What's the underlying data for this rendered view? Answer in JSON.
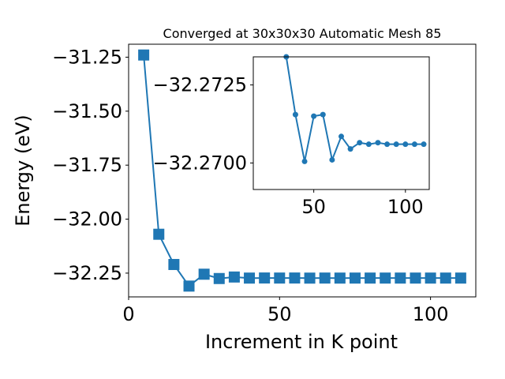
{
  "chart_data": [
    {
      "type": "line",
      "title": "Converged at 30x30x30 Automatic Mesh 85",
      "xlabel": "Increment in K point",
      "ylabel": "Energy (eV)",
      "xlim": [
        0,
        115
      ],
      "ylim": [
        -32.36,
        -31.19
      ],
      "x_ticks": [
        0,
        50,
        100
      ],
      "y_ticks": [
        -31.25,
        -31.5,
        -31.75,
        -32.0,
        -32.25
      ],
      "x_tick_labels": [
        "0",
        "50",
        "100"
      ],
      "y_tick_labels": [
        "−31.25",
        "−31.50",
        "−31.75",
        "−32.00",
        "−32.25"
      ],
      "marker": "square",
      "color": "#1f77b4",
      "grid": false,
      "series": [
        {
          "x": [
            5,
            10,
            15,
            20,
            25,
            30,
            35,
            40,
            45,
            50,
            55,
            60,
            65,
            70,
            75,
            80,
            85,
            90,
            95,
            100,
            105,
            110
          ],
          "y": [
            -31.24,
            -32.07,
            -32.21,
            -32.31,
            -32.255,
            -32.275,
            -32.268,
            -32.273,
            -32.2725,
            -32.2728,
            -32.2726,
            -32.2731,
            -32.2728,
            -32.273,
            -32.2729,
            -32.2729,
            -32.2729,
            -32.2729,
            -32.2729,
            -32.2729,
            -32.2729,
            -32.2729
          ]
        }
      ]
    },
    {
      "type": "line",
      "title": "",
      "xlabel": "",
      "ylabel": "",
      "xlim": [
        17,
        113
      ],
      "ylim": [
        -32.26915,
        -32.2734
      ],
      "x_ticks": [
        50,
        100
      ],
      "y_ticks": [
        -32.2725,
        -32.27
      ],
      "x_tick_labels": [
        "50",
        "100"
      ],
      "y_tick_labels": [
        "−32.2725",
        "−32.2700"
      ],
      "marker": "circle",
      "color": "#1f77b4",
      "grid": false,
      "series": [
        {
          "x": [
            35,
            40,
            45,
            50,
            55,
            60,
            65,
            70,
            75,
            80,
            85,
            90,
            95,
            100,
            105,
            110
          ],
          "y": [
            -32.2734,
            -32.27155,
            -32.27005,
            -32.2715,
            -32.27155,
            -32.2701,
            -32.27085,
            -32.27045,
            -32.27065,
            -32.2706,
            -32.27065,
            -32.2706,
            -32.2706,
            -32.2706,
            -32.2706,
            -32.2706
          ]
        }
      ]
    }
  ]
}
